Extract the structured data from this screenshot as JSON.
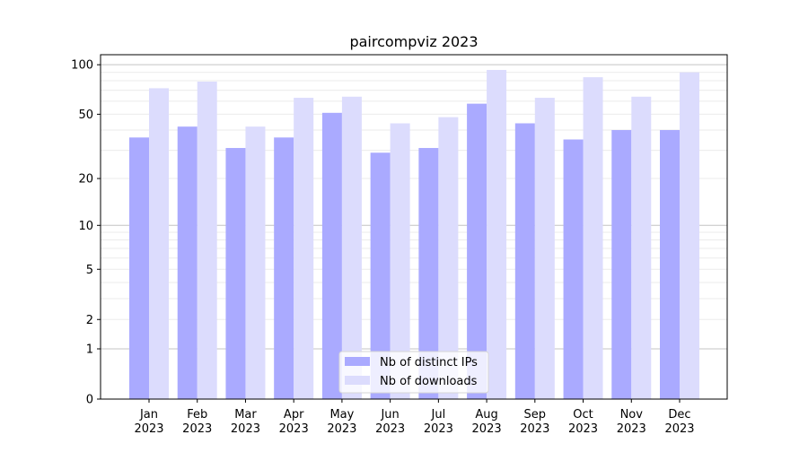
{
  "chart_data": {
    "type": "bar",
    "title": "paircompviz 2023",
    "xlabel": "",
    "ylabel": "",
    "yscale": "log10(1+y)",
    "ylim": [
      0,
      115
    ],
    "yticks": [
      0,
      1,
      2,
      5,
      10,
      20,
      50,
      100
    ],
    "grid": true,
    "legend_placement": "lower center",
    "categories": [
      "Jan\n2023",
      "Feb\n2023",
      "Mar\n2023",
      "Apr\n2023",
      "May\n2023",
      "Jun\n2023",
      "Jul\n2023",
      "Aug\n2023",
      "Sep\n2023",
      "Oct\n2023",
      "Nov\n2023",
      "Dec\n2023"
    ],
    "series": [
      {
        "name": "Nb of distinct IPs",
        "color": "#aaaaff",
        "values": [
          36,
          42,
          31,
          36,
          51,
          29,
          31,
          58,
          44,
          35,
          40,
          40
        ]
      },
      {
        "name": "Nb of downloads",
        "color": "#dcdcfd",
        "values": [
          72,
          79,
          42,
          63,
          64,
          44,
          48,
          93,
          63,
          84,
          64,
          90
        ]
      }
    ]
  }
}
